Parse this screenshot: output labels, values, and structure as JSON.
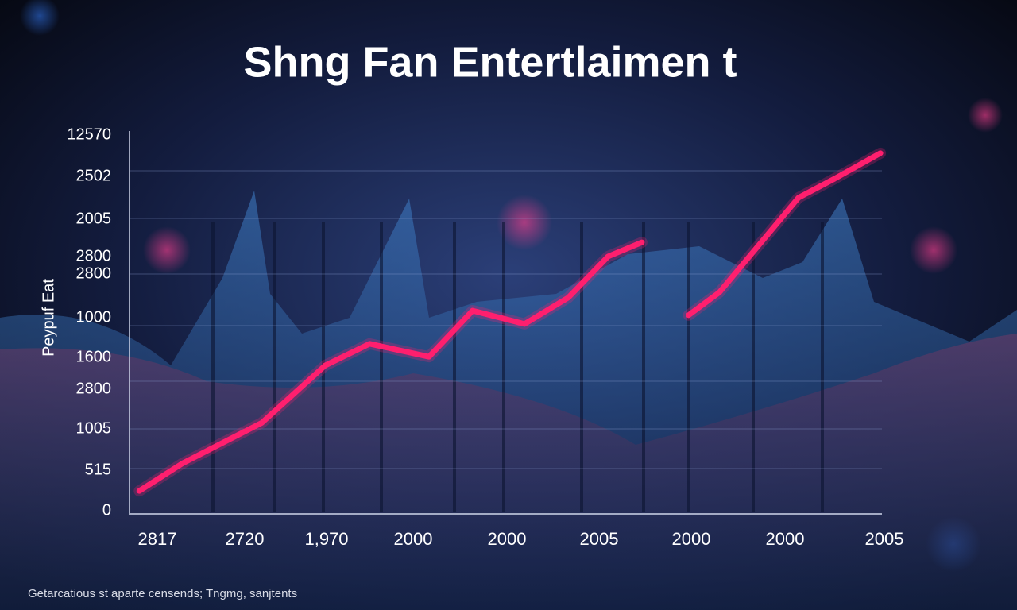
{
  "chart_data": {
    "type": "line",
    "title": "Shng Fan Entertlaimen t",
    "y_axis_label": "Peypuf Eat",
    "y_labels": [
      "12570",
      "2502",
      "2005",
      "2800",
      "2800",
      "1000",
      "1600",
      "2800",
      "1005",
      "515",
      "0"
    ],
    "x_labels": [
      "2817",
      "2720",
      "1,970",
      "2000",
      "2000",
      "2005",
      "2000",
      "2000",
      "2005"
    ],
    "footnote": "Getarcatious st aparte censends; Tngmg, sanjtents",
    "xlim": [
      0,
      100
    ],
    "ylim": [
      0,
      100
    ],
    "x": [
      1.3,
      7.1,
      17.6,
      26.0,
      31.9,
      39.8,
      45.6,
      52.5,
      58.3,
      63.6,
      68.1,
      71.0,
      74.3,
      78.4,
      88.9,
      93.7,
      99.8
    ],
    "series": [
      {
        "color": "#ff1f6e",
        "values": [
          5.6,
          12.9,
          23.5,
          38.5,
          44.2,
          40.8,
          52.9,
          49.4,
          56.3,
          67.1,
          70.8,
          null,
          51.7,
          57.7,
          82.5,
          87.5,
          94.2
        ]
      }
    ],
    "grid": true
  }
}
